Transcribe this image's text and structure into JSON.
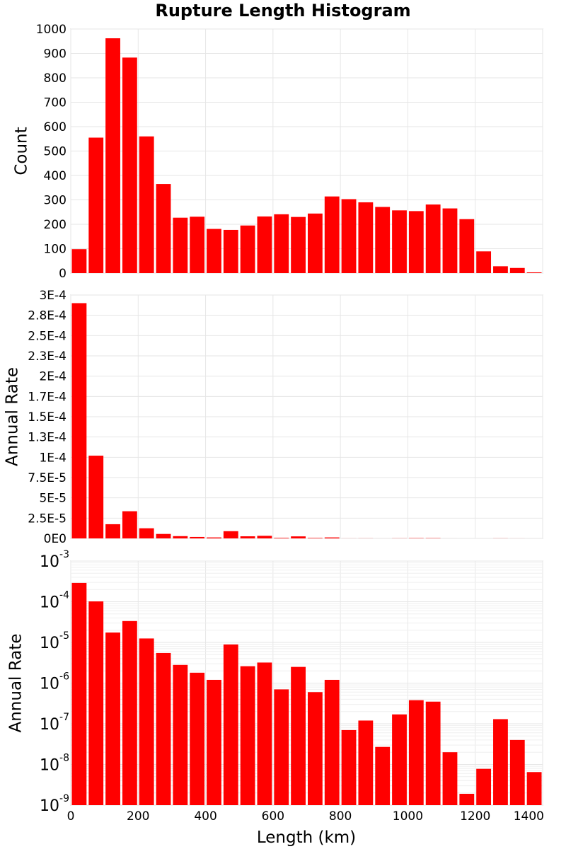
{
  "chart_data": {
    "type": "bar",
    "title": "Rupture Length Histogram",
    "xlabel": "Length (km)",
    "xlim": [
      0,
      1400
    ],
    "xticks": [
      0,
      200,
      400,
      600,
      800,
      1000,
      1200,
      1400
    ],
    "xtick_labels": [
      "0",
      "200",
      "400",
      "600",
      "800",
      "1000",
      "1200",
      "1400"
    ],
    "bin_width": 50,
    "bar_color": "#ff0000",
    "categories": [
      25,
      75,
      125,
      175,
      225,
      275,
      325,
      375,
      425,
      475,
      525,
      575,
      625,
      675,
      725,
      775,
      825,
      875,
      925,
      975,
      1025,
      1075,
      1125,
      1175,
      1225,
      1275,
      1325,
      1375
    ],
    "panels": [
      {
        "ylabel": "Count",
        "yscale": "linear",
        "ylim": [
          0,
          1000
        ],
        "yticks": [
          0,
          100,
          200,
          300,
          400,
          500,
          600,
          700,
          800,
          900,
          1000
        ],
        "ytick_labels": [
          "0",
          "100",
          "200",
          "300",
          "400",
          "500",
          "600",
          "700",
          "800",
          "900",
          "1000"
        ],
        "values": [
          98,
          555,
          962,
          883,
          560,
          365,
          227,
          231,
          181,
          177,
          195,
          232,
          241,
          230,
          244,
          314,
          303,
          290,
          271,
          257,
          254,
          281,
          265,
          221,
          89,
          28,
          21,
          3
        ]
      },
      {
        "ylabel": "Annual Rate",
        "yscale": "linear",
        "ylim": [
          0,
          0.0003
        ],
        "yticks": [
          0,
          2.5e-05,
          5e-05,
          7.5e-05,
          0.0001,
          0.000125,
          0.00015,
          0.000175,
          0.0002,
          0.000225,
          0.00025,
          0.000275,
          0.0003
        ],
        "ytick_labels": [
          "0E0",
          "2.5E-5",
          "5E-5",
          "7.5E-5",
          "1E-4",
          "1.3E-4",
          "1.5E-4",
          "1.7E-4",
          "2E-4",
          "2.3E-4",
          "2.5E-4",
          "2.8E-4",
          "3E-4"
        ],
        "values": [
          0.00029,
          0.000102,
          1.75e-05,
          3.35e-05,
          1.25e-05,
          5.5e-06,
          2.8e-06,
          1.8e-06,
          1.2e-06,
          8.9e-06,
          2.6e-06,
          3.2e-06,
          7e-07,
          2.5e-06,
          6e-07,
          1.2e-06,
          7e-08,
          1.2e-07,
          2.7e-08,
          1.7e-07,
          3.8e-07,
          3.5e-07,
          2e-08,
          1.9e-09,
          7.8e-09,
          1.3e-07,
          4e-08,
          6.5e-09
        ]
      },
      {
        "ylabel": "Annual Rate",
        "yscale": "log",
        "ylim": [
          1e-09,
          0.001
        ],
        "ytick_values": [
          1e-09,
          1e-08,
          1e-07,
          1e-06,
          1e-05,
          0.0001,
          0.001
        ],
        "ytick_base": "10",
        "ytick_exponents": [
          "-9",
          "-8",
          "-7",
          "-6",
          "-5",
          "-4",
          "-3"
        ],
        "values": [
          0.00029,
          0.000102,
          1.75e-05,
          3.35e-05,
          1.25e-05,
          5.5e-06,
          2.8e-06,
          1.8e-06,
          1.2e-06,
          8.9e-06,
          2.6e-06,
          3.2e-06,
          7e-07,
          2.5e-06,
          6e-07,
          1.2e-06,
          7e-08,
          1.2e-07,
          2.7e-08,
          1.7e-07,
          3.8e-07,
          3.5e-07,
          2e-08,
          1.9e-09,
          7.8e-09,
          1.3e-07,
          4e-08,
          6.5e-09
        ]
      }
    ]
  }
}
